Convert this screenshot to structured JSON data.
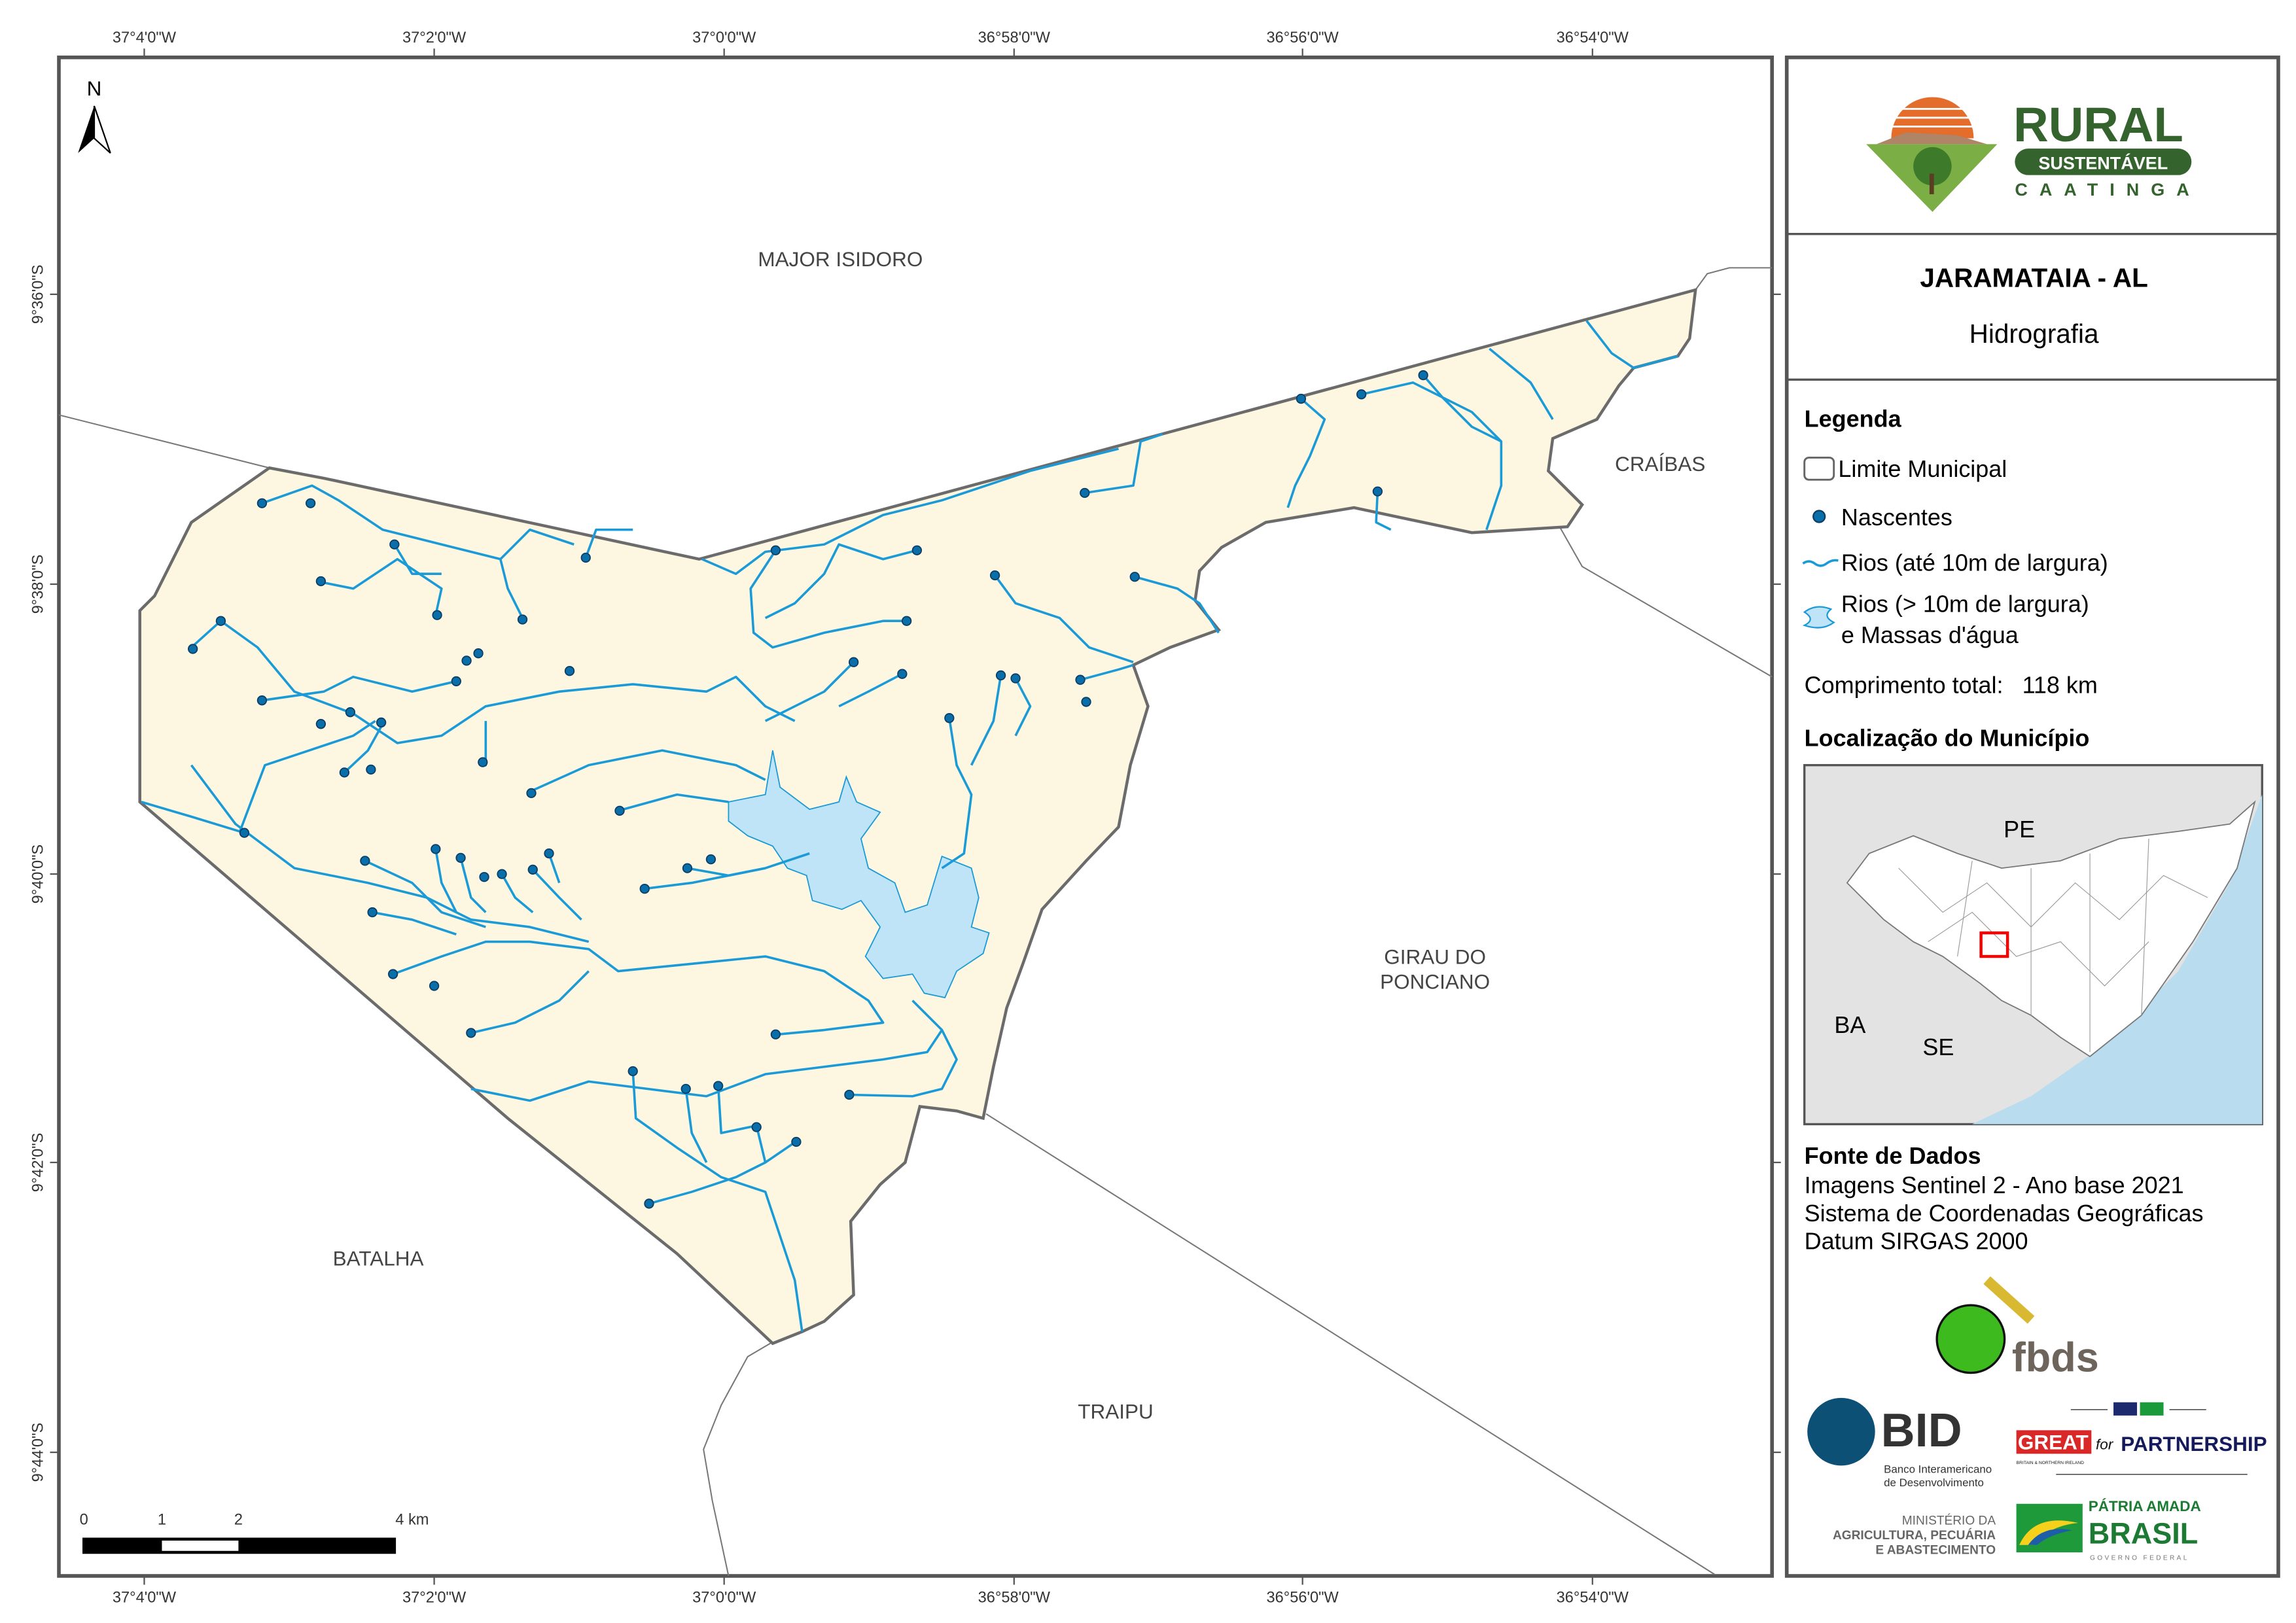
{
  "map": {
    "north_label": "N",
    "lon_ticks": [
      "37°4'0\"W",
      "37°2'0\"W",
      "37°0'0\"W",
      "36°58'0\"W",
      "36°56'0\"W",
      "36°54'0\"W"
    ],
    "lat_ticks": [
      "9°36'0\"S",
      "9°38'0\"S",
      "9°40'0\"S",
      "9°42'0\"S",
      "9°44'0\"S"
    ],
    "neighbors": {
      "major_isidoro": "MAJOR ISIDORO",
      "craibas": "CRAÍBAS",
      "girau_line1": "GIRAU DO",
      "girau_line2": "PONCIANO",
      "batalha": "BATALHA",
      "traipu": "TRAIPU"
    },
    "scale": {
      "l0": "0",
      "l1": "1",
      "l2": "2",
      "l4": "4 km"
    },
    "colors": {
      "municipality_fill": "#fdf6e0",
      "river": "#1a9ad6",
      "water_body": "#bfe4f8",
      "spring": "#0a6fa8",
      "boundary": "#6b6b6b"
    }
  },
  "panel": {
    "logo": {
      "rural": "RURAL",
      "sustentavel": "SUSTENTÁVEL",
      "caatinga": "CAATINGA"
    },
    "title": "JARAMATAIA - AL",
    "subtitle": "Hidrografia",
    "legend": {
      "heading": "Legenda",
      "items": [
        {
          "label": "Limite Municipal",
          "icon": "boundary-swatch"
        },
        {
          "label": "Nascentes",
          "icon": "spring-dot"
        },
        {
          "label": "Rios (até 10m de largura)",
          "icon": "river-line"
        },
        {
          "label": "Rios (> 10m de largura)",
          "label2": "e Massas d'água",
          "icon": "water-polygon"
        }
      ],
      "total_length_label": "Comprimento total:",
      "total_length_value": "118 km"
    },
    "location": {
      "heading": "Localização do Município",
      "labels": {
        "pe": "PE",
        "ba": "BA",
        "se": "SE"
      }
    },
    "sources": {
      "heading": "Fonte de Dados",
      "lines": [
        "Imagens Sentinel 2 - Ano base 2021",
        "Sistema de Coordenadas Geográficas",
        "Datum SIRGAS 2000"
      ]
    },
    "logos": {
      "fbds": "fbds",
      "bid": "BID",
      "bid_sub1": "Banco Interamericano",
      "bid_sub2": "de Desenvolvimento",
      "great": "GREAT",
      "great_sub": "BRITAIN & NORTHERN IRELAND",
      "for": "for",
      "partnership": "PARTNERSHIP",
      "mapa1": "MINISTÉRIO DA",
      "mapa2": "AGRICULTURA, PECUÁRIA",
      "mapa3": "E ABASTECIMENTO",
      "patria": "PÁTRIA AMADA",
      "brasil": "BRASIL",
      "governo": "GOVERNO FEDERAL"
    }
  }
}
